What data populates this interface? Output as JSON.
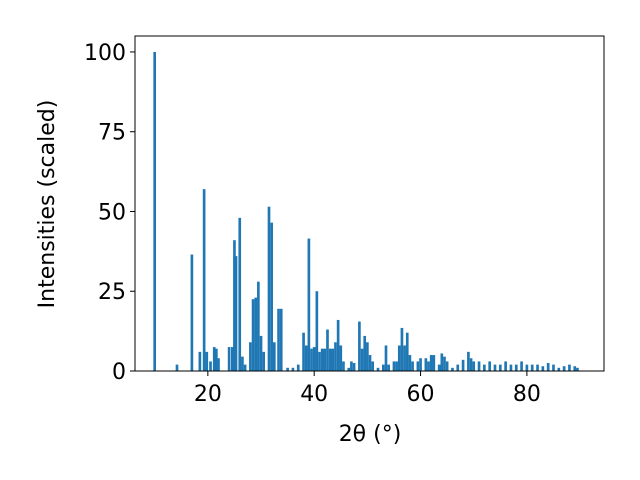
{
  "chart_data": {
    "type": "bar",
    "color": "#1f77b4",
    "xlabel": "2θ (°)",
    "ylabel": "Intensities (scaled)",
    "xlim": [
      6.3,
      94.5
    ],
    "ylim": [
      0,
      105
    ],
    "xticks": [
      20,
      40,
      60,
      80
    ],
    "yticks": [
      0,
      25,
      50,
      75,
      100
    ],
    "grid": false,
    "x": [
      10.0,
      14.2,
      17.0,
      18.5,
      19.3,
      19.8,
      20.5,
      21.2,
      21.6,
      22.0,
      24.0,
      24.6,
      25.0,
      25.3,
      26.0,
      26.5,
      27.0,
      28.0,
      28.5,
      29.0,
      29.5,
      30.0,
      30.5,
      31.5,
      32.0,
      32.5,
      33.3,
      33.8,
      35.0,
      36.0,
      37.0,
      38.0,
      38.5,
      39.0,
      39.5,
      40.0,
      40.5,
      41.0,
      41.5,
      42.0,
      42.5,
      43.0,
      43.5,
      44.0,
      44.5,
      45.0,
      45.5,
      46.5,
      47.0,
      47.5,
      48.5,
      49.0,
      49.5,
      50.0,
      50.5,
      51.0,
      52.0,
      53.0,
      53.5,
      54.0,
      55.0,
      55.5,
      56.0,
      56.5,
      57.0,
      57.5,
      58.0,
      58.5,
      59.5,
      60.0,
      61.0,
      61.5,
      62.0,
      62.5,
      63.5,
      64.0,
      64.5,
      65.0,
      66.0,
      67.0,
      68.0,
      69.0,
      69.5,
      70.0,
      71.0,
      72.0,
      73.0,
      74.0,
      75.0,
      76.0,
      77.0,
      78.0,
      79.0,
      80.0,
      81.0,
      82.0,
      83.0,
      84.0,
      85.0,
      86.0,
      87.0,
      88.0,
      89.0,
      89.5
    ],
    "values": [
      100,
      2,
      36.5,
      6,
      57,
      6,
      3,
      7.5,
      7,
      4,
      7.5,
      7.5,
      41,
      36,
      48,
      4.5,
      2,
      9,
      22.5,
      23,
      28,
      11,
      6,
      51.5,
      46.5,
      9,
      19.5,
      19.5,
      1,
      1,
      2,
      12,
      8,
      41.5,
      7,
      7.5,
      25,
      6,
      7,
      7,
      13,
      7,
      7,
      9,
      16,
      8,
      3,
      1,
      3,
      2.5,
      15.5,
      7,
      11,
      9,
      5,
      3,
      1,
      2,
      8,
      2,
      3,
      3,
      8,
      13.5,
      8,
      12,
      5,
      3,
      3,
      4,
      4,
      3,
      5,
      5,
      2,
      5.5,
      4.5,
      3,
      1,
      2,
      3.5,
      6,
      4,
      3,
      3,
      2,
      3,
      2,
      2,
      3,
      2,
      2,
      3,
      2,
      2,
      2,
      1.5,
      2.5,
      2,
      1,
      1.5,
      2,
      1.5,
      1
    ]
  }
}
